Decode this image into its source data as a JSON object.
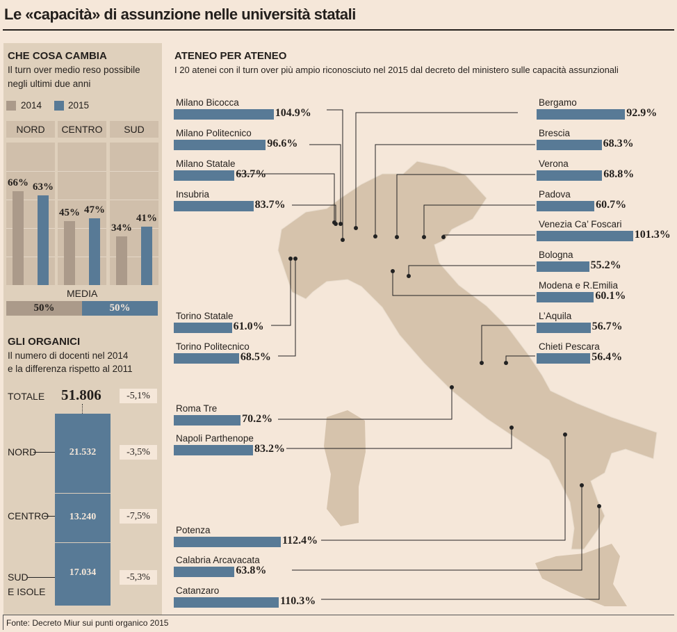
{
  "title": "Le «capacità» di assunzione nelle università statali",
  "colors": {
    "c2014": "#ab9a8a",
    "c2015": "#587a96",
    "map": "#d6c3ac",
    "panel": "#dfd0bc"
  },
  "left_top": {
    "heading": "CHE COSA CAMBIA",
    "subtitle_line1": "Il turn over medio reso possibile",
    "subtitle_line2": "negli ultimi due anni",
    "legend_2014": "2014",
    "legend_2015": "2015",
    "media_label": "MEDIA",
    "media_2014": "50%",
    "media_2015": "50%"
  },
  "left_bottom": {
    "heading": "GLI ORGANICI",
    "subtitle_line1": "Il numero di docenti nel 2014",
    "subtitle_line2": "e la differenza rispetto al 2011",
    "totale_label": "TOTALE",
    "totale_value": "51.806",
    "totale_change": "-5,1%",
    "nord_label": "NORD",
    "centro_label": "CENTRO",
    "sud_label1": "SUD",
    "sud_label2": "E ISOLE"
  },
  "right": {
    "heading": "ATENEO PER ATENEO",
    "subtitle": "I 20 atenei con il turn over più ampio riconosciuto nel 2015 dal decreto del ministero sulle capacità assunzionali"
  },
  "source": "Fonte: Decreto Miur sui punti organico 2015",
  "chart_data": [
    {
      "type": "bar",
      "title": "CHE COSA CAMBIA",
      "categories": [
        "NORD",
        "CENTRO",
        "SUD"
      ],
      "series": [
        {
          "name": "2014",
          "values": [
            66,
            45,
            34
          ]
        },
        {
          "name": "2015",
          "values": [
            63,
            47,
            41
          ]
        }
      ],
      "labels": [
        [
          "66%",
          "63%"
        ],
        [
          "45%",
          "47%"
        ],
        [
          "34%",
          "41%"
        ]
      ],
      "ylim": [
        0,
        100
      ],
      "unit": "%"
    },
    {
      "type": "bar",
      "title": "GLI ORGANICI",
      "stacked": true,
      "categories": [
        "NORD",
        "CENTRO",
        "SUD E ISOLE"
      ],
      "values": [
        21532,
        13240,
        17034
      ],
      "value_labels": [
        "21.532",
        "13.240",
        "17.034"
      ],
      "changes": [
        "-3,5%",
        "-7,5%",
        "-5,3%"
      ],
      "total": 51806
    },
    {
      "type": "bar",
      "title": "ATENEO PER ATENEO",
      "unit": "%",
      "universities": [
        {
          "name": "Milano Bicocca",
          "value": 104.9,
          "label": "104.9%"
        },
        {
          "name": "Milano Politecnico",
          "value": 96.6,
          "label": "96.6%"
        },
        {
          "name": "Milano Statale",
          "value": 63.7,
          "label": "63.7%"
        },
        {
          "name": "Insubria",
          "value": 83.7,
          "label": "83.7%"
        },
        {
          "name": "Torino Statale",
          "value": 61.0,
          "label": "61.0%"
        },
        {
          "name": "Torino Politecnico",
          "value": 68.5,
          "label": "68.5%"
        },
        {
          "name": "Roma Tre",
          "value": 70.2,
          "label": "70.2%"
        },
        {
          "name": "Napoli Parthenope",
          "value": 83.2,
          "label": "83.2%"
        },
        {
          "name": "Potenza",
          "value": 112.4,
          "label": "112.4%"
        },
        {
          "name": "Calabria Arcavacata",
          "value": 63.8,
          "label": "63.8%"
        },
        {
          "name": "Catanzaro",
          "value": 110.3,
          "label": "110.3%"
        },
        {
          "name": "Bergamo",
          "value": 92.9,
          "label": "92.9%"
        },
        {
          "name": "Brescia",
          "value": 68.3,
          "label": "68.3%"
        },
        {
          "name": "Verona",
          "value": 68.8,
          "label": "68.8%"
        },
        {
          "name": "Padova",
          "value": 60.7,
          "label": "60.7%"
        },
        {
          "name": "Venezia Ca’ Foscari",
          "value": 101.3,
          "label": "101.3%"
        },
        {
          "name": "Bologna",
          "value": 55.2,
          "label": "55.2%"
        },
        {
          "name": "Modena e R.Emilia",
          "value": 60.1,
          "label": "60.1%"
        },
        {
          "name": "L’Aquila",
          "value": 56.7,
          "label": "56.7%"
        },
        {
          "name": "Chieti Pescara",
          "value": 56.4,
          "label": "56.4%"
        }
      ]
    }
  ]
}
